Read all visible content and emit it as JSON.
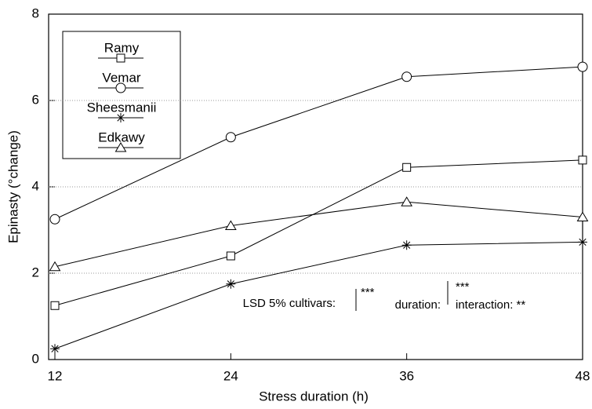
{
  "chart_data": {
    "type": "line",
    "x_label": "Stress duration (h)",
    "y_label": "Epinasty (°change)",
    "x": [
      12,
      24,
      36,
      48
    ],
    "xlim": [
      12,
      48
    ],
    "xticks": [
      12,
      24,
      36,
      48
    ],
    "ylim": [
      0,
      8
    ],
    "yticks": [
      0,
      2,
      4,
      6,
      8
    ],
    "grid": true,
    "legend": "upper left",
    "series": [
      {
        "name": "Ramy",
        "color": "#000000",
        "marker": "square",
        "values": [
          1.25,
          2.4,
          4.45,
          4.62
        ]
      },
      {
        "name": "Vemar",
        "color": "#000000",
        "marker": "circle",
        "values": [
          3.25,
          5.15,
          6.55,
          6.78
        ]
      },
      {
        "name": "Sheesmanii",
        "color": "#000000",
        "marker": "star",
        "values": [
          0.25,
          1.75,
          2.65,
          2.72
        ]
      },
      {
        "name": "Edkawy",
        "color": "#000000",
        "marker": "triangle",
        "values": [
          2.15,
          3.1,
          3.65,
          3.3
        ]
      }
    ],
    "annotations": [
      "LSD 5% cultivars:",
      "***",
      "duration:",
      "***",
      "interaction: **"
    ]
  }
}
